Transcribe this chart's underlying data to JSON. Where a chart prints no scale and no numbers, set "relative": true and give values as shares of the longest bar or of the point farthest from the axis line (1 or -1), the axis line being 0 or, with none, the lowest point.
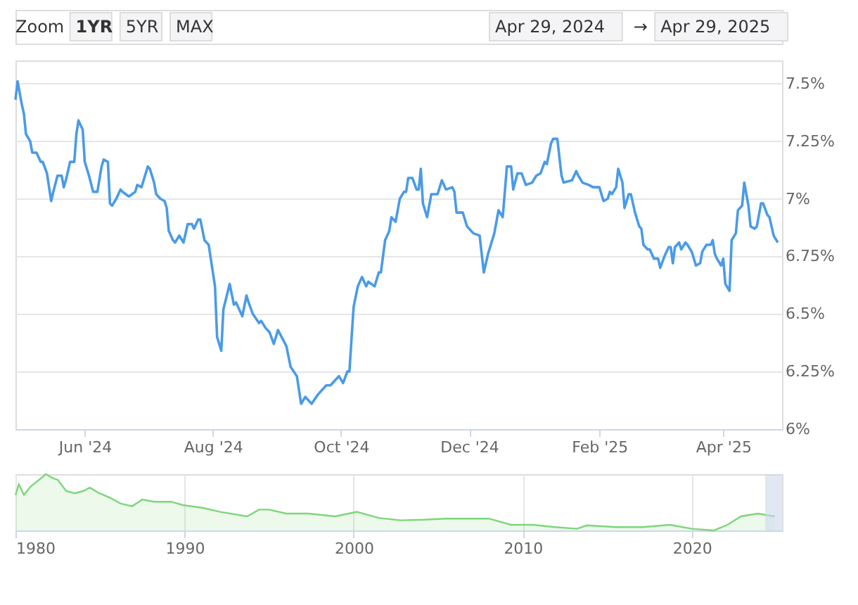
{
  "chart_data": [
    {
      "type": "line",
      "annotations": [
        "Zoom",
        "1YR",
        "5YR",
        "MAX",
        "Apr 29, 2024",
        "→",
        "Apr 29, 2025"
      ],
      "x": [
        "2024-04-29",
        "2024-04-30",
        "2024-05-02",
        "2024-05-03",
        "2024-05-04",
        "2024-05-06",
        "2024-05-07",
        "2024-05-09",
        "2024-05-11",
        "2024-05-12",
        "2024-05-14",
        "2024-05-16",
        "2024-05-17",
        "2024-05-19",
        "2024-05-21",
        "2024-05-22",
        "2024-05-23",
        "2024-05-25",
        "2024-05-27",
        "2024-05-28",
        "2024-05-29",
        "2024-05-31",
        "2024-06-01",
        "2024-06-03",
        "2024-06-05",
        "2024-06-07",
        "2024-06-09",
        "2024-06-10",
        "2024-06-12",
        "2024-06-13",
        "2024-06-14",
        "2024-06-16",
        "2024-06-18",
        "2024-06-19",
        "2024-06-22",
        "2024-06-25",
        "2024-06-26",
        "2024-06-28",
        "2024-06-29",
        "2024-07-01",
        "2024-07-02",
        "2024-07-04",
        "2024-07-05",
        "2024-07-07",
        "2024-07-09",
        "2024-07-10",
        "2024-07-11",
        "2024-07-13",
        "2024-07-14",
        "2024-07-16",
        "2024-07-18",
        "2024-07-20",
        "2024-07-22",
        "2024-07-23",
        "2024-07-25",
        "2024-07-26",
        "2024-07-28",
        "2024-07-30",
        "2024-08-02",
        "2024-08-03",
        "2024-08-05",
        "2024-08-06",
        "2024-08-09",
        "2024-08-11",
        "2024-08-12",
        "2024-08-15",
        "2024-08-17",
        "2024-08-18",
        "2024-08-20",
        "2024-08-23",
        "2024-08-24",
        "2024-08-26",
        "2024-08-28",
        "2024-08-30",
        "2024-09-01",
        "2024-09-05",
        "2024-09-07",
        "2024-09-10",
        "2024-09-12",
        "2024-09-14",
        "2024-09-17",
        "2024-09-20",
        "2024-09-22",
        "2024-09-24",
        "2024-09-26",
        "2024-09-28",
        "2024-09-30",
        "2024-10-02",
        "2024-10-04",
        "2024-10-05",
        "2024-10-07",
        "2024-10-09",
        "2024-10-11",
        "2024-10-13",
        "2024-10-14",
        "2024-10-17",
        "2024-10-19",
        "2024-10-20",
        "2024-10-22",
        "2024-10-24",
        "2024-10-25",
        "2024-10-27",
        "2024-10-29",
        "2024-10-31",
        "2024-11-01",
        "2024-11-02",
        "2024-11-04",
        "2024-11-06",
        "2024-11-07",
        "2024-11-08",
        "2024-11-09",
        "2024-11-11",
        "2024-11-13",
        "2024-11-16",
        "2024-11-18",
        "2024-11-20",
        "2024-11-23",
        "2024-11-24",
        "2024-11-25",
        "2024-11-28",
        "2024-11-30",
        "2024-12-03",
        "2024-12-06",
        "2024-12-08",
        "2024-12-10",
        "2024-12-11",
        "2024-12-13",
        "2024-12-15",
        "2024-12-17",
        "2024-12-19",
        "2024-12-21",
        "2024-12-22",
        "2024-12-24",
        "2024-12-26",
        "2024-12-28",
        "2024-12-31",
        "2025-01-02",
        "2025-01-04",
        "2025-01-06",
        "2025-01-07",
        "2025-01-09",
        "2025-01-10",
        "2025-01-12",
        "2025-01-14",
        "2025-01-15",
        "2025-01-19",
        "2025-01-21",
        "2025-01-22",
        "2025-01-24",
        "2025-01-27",
        "2025-01-29",
        "2025-02-01",
        "2025-02-03",
        "2025-02-05",
        "2025-02-06",
        "2025-02-07",
        "2025-02-09",
        "2025-02-10",
        "2025-02-12",
        "2025-02-13",
        "2025-02-15",
        "2025-02-16",
        "2025-02-18",
        "2025-02-20",
        "2025-02-21",
        "2025-02-22",
        "2025-02-24",
        "2025-02-25",
        "2025-02-27",
        "2025-03-01",
        "2025-03-02",
        "2025-03-04",
        "2025-03-06",
        "2025-03-07",
        "2025-03-08",
        "2025-03-09",
        "2025-03-11",
        "2025-03-12",
        "2025-03-14",
        "2025-03-15",
        "2025-03-17",
        "2025-03-19",
        "2025-03-21",
        "2025-03-22",
        "2025-03-24",
        "2025-03-26",
        "2025-03-27",
        "2025-03-28",
        "2025-03-29",
        "2025-03-31",
        "2025-04-01",
        "2025-04-02",
        "2025-04-04",
        "2025-04-05",
        "2025-04-07",
        "2025-04-08",
        "2025-04-10",
        "2025-04-11",
        "2025-04-13",
        "2025-04-14",
        "2025-04-16",
        "2025-04-17",
        "2025-04-19",
        "2025-04-20",
        "2025-04-22",
        "2025-04-23",
        "2025-04-25",
        "2025-04-27"
      ],
      "series": [
        {
          "color": "#4a9be8",
          "values": [
            7.43,
            7.51,
            7.41,
            7.37,
            7.28,
            7.25,
            7.2,
            7.2,
            7.16,
            7.16,
            7.11,
            6.99,
            7.03,
            7.1,
            7.1,
            7.05,
            7.08,
            7.16,
            7.16,
            7.28,
            7.34,
            7.3,
            7.16,
            7.1,
            7.03,
            7.03,
            7.14,
            7.17,
            7.16,
            6.98,
            6.97,
            7.0,
            7.04,
            7.03,
            7.01,
            7.03,
            7.06,
            7.05,
            7.08,
            7.14,
            7.13,
            7.07,
            7.02,
            7.0,
            6.99,
            6.96,
            6.86,
            6.82,
            6.81,
            6.84,
            6.81,
            6.89,
            6.89,
            6.87,
            6.91,
            6.91,
            6.82,
            6.8,
            6.62,
            6.4,
            6.34,
            6.52,
            6.63,
            6.54,
            6.55,
            6.49,
            6.58,
            6.55,
            6.5,
            6.46,
            6.47,
            6.44,
            6.42,
            6.37,
            6.43,
            6.36,
            6.27,
            6.23,
            6.11,
            6.14,
            6.11,
            6.15,
            6.17,
            6.19,
            6.19,
            6.21,
            6.23,
            6.2,
            6.25,
            6.25,
            6.53,
            6.62,
            6.66,
            6.62,
            6.64,
            6.62,
            6.68,
            6.68,
            6.82,
            6.86,
            6.92,
            6.9,
            7.0,
            7.03,
            7.03,
            7.09,
            7.09,
            7.04,
            7.04,
            7.13,
            6.98,
            6.92,
            7.02,
            7.02,
            7.08,
            7.04,
            7.05,
            7.03,
            6.94,
            6.94,
            6.88,
            6.85,
            6.84,
            6.68,
            6.76,
            6.79,
            6.85,
            6.95,
            6.92,
            7.14,
            7.14,
            7.04,
            7.11,
            7.11,
            7.06,
            7.07,
            7.1,
            7.11,
            7.16,
            7.15,
            7.24,
            7.26,
            7.26,
            7.1,
            7.07,
            7.08,
            7.12,
            7.1,
            7.07,
            7.06,
            7.05,
            7.05,
            6.99,
            7.0,
            7.03,
            7.02,
            7.05,
            7.13,
            7.07,
            6.96,
            7.02,
            7.02,
            6.94,
            6.88,
            6.87,
            6.8,
            6.78,
            6.78,
            6.74,
            6.74,
            6.7,
            6.75,
            6.79,
            6.79,
            6.72,
            6.79,
            6.81,
            6.78,
            6.81,
            6.8,
            6.77,
            6.71,
            6.72,
            6.77,
            6.8,
            6.8,
            6.82,
            6.76,
            6.74,
            6.71,
            6.74,
            6.63,
            6.6,
            6.82,
            6.85,
            6.95,
            6.97,
            7.07,
            6.97,
            6.88,
            6.87,
            6.88,
            6.98,
            6.98,
            6.93,
            6.92,
            6.84,
            6.81
          ]
        }
      ],
      "xlim": [
        "2024-04-29",
        "2025-04-29"
      ],
      "xticks": [
        {
          "value": "2024-06-01",
          "label": "Jun '24"
        },
        {
          "value": "2024-08-01",
          "label": "Aug '24"
        },
        {
          "value": "2024-10-01",
          "label": "Oct '24"
        },
        {
          "value": "2024-12-01",
          "label": "Dec '24"
        },
        {
          "value": "2025-02-01",
          "label": "Feb '25"
        },
        {
          "value": "2025-04-01",
          "label": "Apr '25"
        }
      ],
      "ylim": [
        6,
        7.6
      ],
      "yticks": [
        {
          "value": 6,
          "label": "6%"
        },
        {
          "value": 6.25,
          "label": "6.25%"
        },
        {
          "value": 6.5,
          "label": "6.5%"
        },
        {
          "value": 6.75,
          "label": "6.75%"
        },
        {
          "value": 7,
          "label": "7%"
        },
        {
          "value": 7.25,
          "label": "7.25%"
        },
        {
          "value": 7.5,
          "label": "7.5%"
        }
      ],
      "grid": "y"
    },
    {
      "type": "area",
      "relative": true,
      "tick_labels": "x",
      "grid": "x",
      "x": [
        1980.0,
        1980.2,
        1980.5,
        1980.9,
        1981.4,
        1981.8,
        1982.2,
        1982.5,
        1983.0,
        1983.5,
        1984.0,
        1984.4,
        1984.9,
        1985.6,
        1986.2,
        1986.9,
        1987.5,
        1988.2,
        1989.2,
        1989.9,
        1991.1,
        1992.1,
        1993.7,
        1994.4,
        1995.0,
        1996.0,
        1997.3,
        1998.9,
        2000.2,
        2001.5,
        2002.8,
        2004.1,
        2005.4,
        2006.7,
        2008.0,
        2009.3,
        2010.6,
        2011.9,
        2013.2,
        2013.8,
        2015.5,
        2017.1,
        2018.7,
        2020.0,
        2021.3,
        2022.1,
        2022.9,
        2023.9,
        2024.9
      ],
      "series": [
        {
          "color": "#7ed67a",
          "values": [
            0.63,
            0.82,
            0.63,
            0.78,
            0.9,
            1.0,
            0.93,
            0.9,
            0.7,
            0.66,
            0.7,
            0.76,
            0.67,
            0.58,
            0.48,
            0.43,
            0.55,
            0.51,
            0.51,
            0.45,
            0.4,
            0.33,
            0.25,
            0.37,
            0.37,
            0.3,
            0.3,
            0.25,
            0.33,
            0.22,
            0.18,
            0.19,
            0.21,
            0.21,
            0.21,
            0.1,
            0.1,
            0.06,
            0.03,
            0.09,
            0.06,
            0.06,
            0.1,
            0.03,
            0.0,
            0.1,
            0.25,
            0.3,
            0.25
          ]
        }
      ],
      "xlim": [
        1980,
        2025.33
      ],
      "xticks": [
        1980,
        1990,
        2000,
        2010,
        2020
      ],
      "bands": [
        {
          "axis": "x",
          "from": 2024.33,
          "to": 2025.33,
          "color": "#cdd9ec"
        }
      ]
    }
  ]
}
